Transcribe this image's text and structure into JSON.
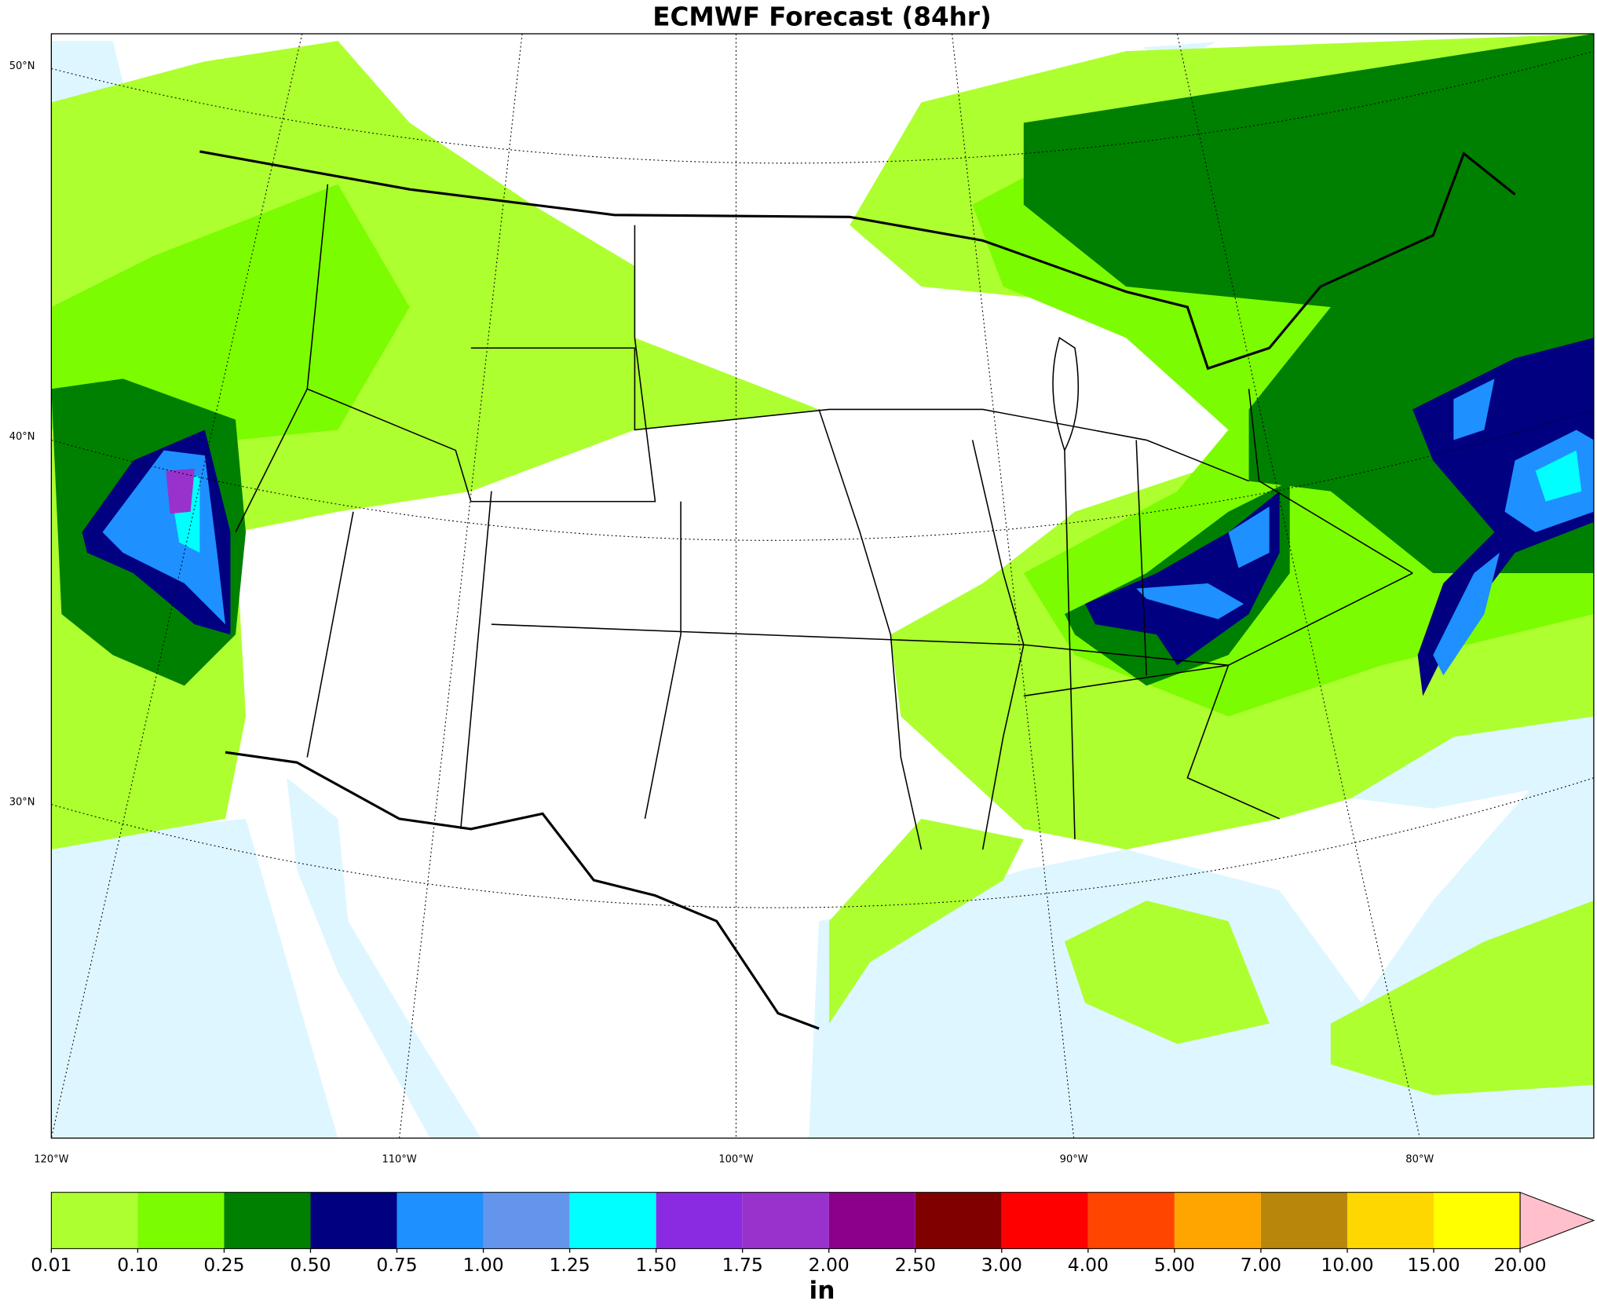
{
  "chart_data": {
    "type": "map",
    "title": "ECMWF Forecast (84hr)",
    "lat_labels": [
      "50°N",
      "40°N",
      "30°N"
    ],
    "lon_labels": [
      "120°W",
      "110°W",
      "100°W",
      "90°W",
      "80°W"
    ],
    "colorbar": {
      "label": "in",
      "ticks": [
        {
          "value": 0.01,
          "label": "0.01"
        },
        {
          "value": 0.1,
          "label": "0.10"
        },
        {
          "value": 0.25,
          "label": "0.25"
        },
        {
          "value": 0.5,
          "label": "0.50"
        },
        {
          "value": 0.75,
          "label": "0.75"
        },
        {
          "value": 1,
          "label": "1.00"
        },
        {
          "value": 1.25,
          "label": "1.25"
        },
        {
          "value": 1.5,
          "label": "1.50"
        },
        {
          "value": 1.75,
          "label": "1.75"
        },
        {
          "value": 2,
          "label": "2.00"
        },
        {
          "value": 2.5,
          "label": "2.50"
        },
        {
          "value": 3,
          "label": "3.00"
        },
        {
          "value": 4,
          "label": "4.00"
        },
        {
          "value": 5,
          "label": "5.00"
        },
        {
          "value": 7,
          "label": "7.00"
        },
        {
          "value": 10,
          "label": "10.00"
        },
        {
          "value": 15,
          "label": "15.00"
        },
        {
          "value": 20,
          "label": "20.00"
        }
      ],
      "colors": [
        "#adff2f",
        "#7cfc00",
        "#008000",
        "#000080",
        "#1e90ff",
        "#6495ed",
        "#00ffff",
        "#8a2be2",
        "#9932cc",
        "#8b008b",
        "#800000",
        "#ff0000",
        "#ff4500",
        "#ffa500",
        "#b8860b",
        "#ffd700",
        "#ffff00"
      ],
      "over_color": "#ffc0cb"
    }
  }
}
